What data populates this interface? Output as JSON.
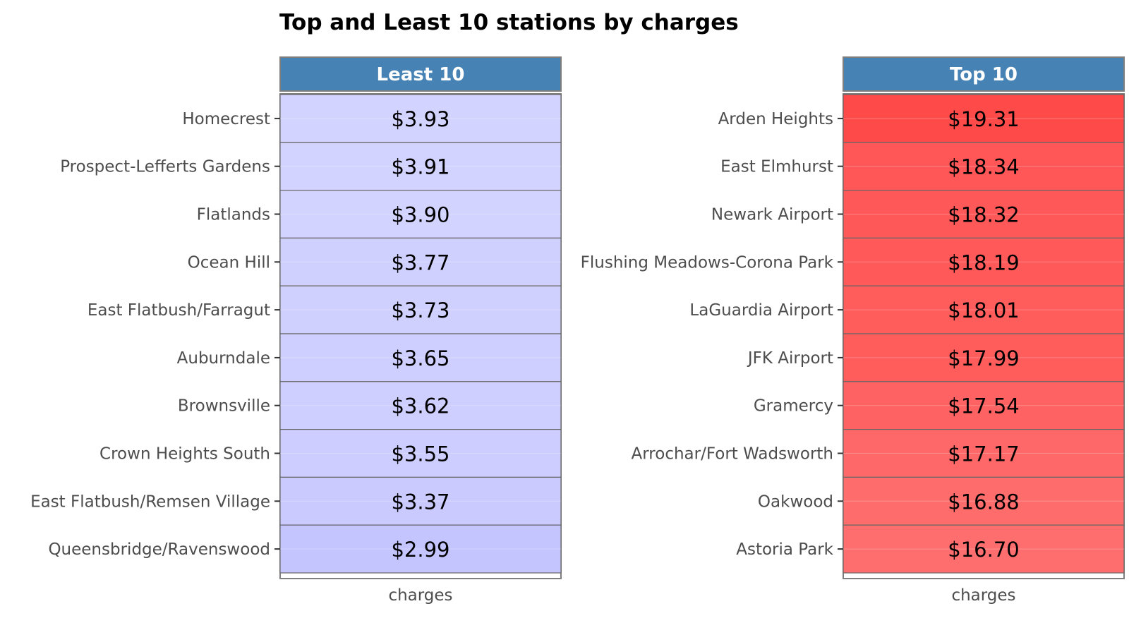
{
  "chart_data": {
    "type": "table",
    "title": "Top and Least 10 stations by charges",
    "value_prefix": "$",
    "value_decimals": 2,
    "panels": [
      {
        "strip_label": "Least 10",
        "xlabel": "charges",
        "fill_low": "#c4c4ff",
        "fill_high": "#d3d3ff",
        "rows": [
          {
            "station": "Homecrest",
            "charges": 3.93
          },
          {
            "station": "Prospect-Lefferts Gardens",
            "charges": 3.91
          },
          {
            "station": "Flatlands",
            "charges": 3.9
          },
          {
            "station": "Ocean Hill",
            "charges": 3.77
          },
          {
            "station": "East Flatbush/Farragut",
            "charges": 3.73
          },
          {
            "station": "Auburndale",
            "charges": 3.65
          },
          {
            "station": "Brownsville",
            "charges": 3.62
          },
          {
            "station": "Crown Heights South",
            "charges": 3.55
          },
          {
            "station": "East Flatbush/Remsen Village",
            "charges": 3.37
          },
          {
            "station": "Queensbridge/Ravenswood",
            "charges": 2.99
          }
        ]
      },
      {
        "strip_label": "Top 10",
        "xlabel": "charges",
        "fill_low": "#ff6e6e",
        "fill_high": "#ff4a4a",
        "rows": [
          {
            "station": "Arden Heights",
            "charges": 19.31
          },
          {
            "station": "East Elmhurst",
            "charges": 18.34
          },
          {
            "station": "Newark Airport",
            "charges": 18.32
          },
          {
            "station": "Flushing Meadows-Corona Park",
            "charges": 18.19
          },
          {
            "station": "LaGuardia Airport",
            "charges": 18.01
          },
          {
            "station": "JFK Airport",
            "charges": 17.99
          },
          {
            "station": "Gramercy",
            "charges": 17.54
          },
          {
            "station": "Arrochar/Fort Wadsworth",
            "charges": 17.17
          },
          {
            "station": "Oakwood",
            "charges": 16.88
          },
          {
            "station": "Astoria Park",
            "charges": 16.7
          }
        ]
      }
    ],
    "colors": {
      "strip_fill": "#4682b4",
      "strip_text": "#ffffff",
      "cell_border": "#666666",
      "panel_border": "#7f7f7f",
      "label_text": "#4d4d4d",
      "value_text": "#000000",
      "title_text": "#000000"
    }
  }
}
